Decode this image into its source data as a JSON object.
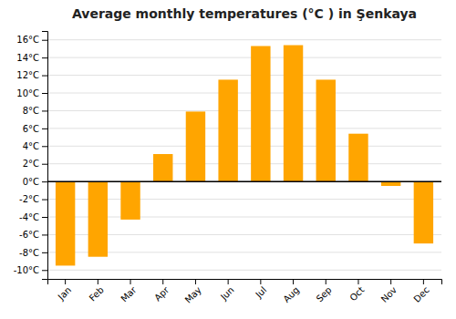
{
  "chart_data": {
    "type": "bar",
    "title": "Average monthly temperatures (°C ) in Şenkaya",
    "categories": [
      "Jan",
      "Feb",
      "Mar",
      "Apr",
      "May",
      "Jun",
      "Jul",
      "Aug",
      "Sep",
      "Oct",
      "Nov",
      "Dec"
    ],
    "values": [
      -9.5,
      -8.5,
      -4.3,
      3.1,
      7.9,
      11.5,
      15.3,
      15.4,
      11.5,
      5.4,
      -0.5,
      -7.0
    ],
    "color": "#FFA500",
    "ylim": [
      -11,
      17
    ],
    "yticks": [
      {
        "value": -10,
        "label": "-10°C"
      },
      {
        "value": -8,
        "label": "-8°C"
      },
      {
        "value": -6,
        "label": "-6°C"
      },
      {
        "value": -4,
        "label": "-4°C"
      },
      {
        "value": -2,
        "label": "-2°C"
      },
      {
        "value": 0,
        "label": "0°C"
      },
      {
        "value": 2,
        "label": "2°C"
      },
      {
        "value": 4,
        "label": "4°C"
      },
      {
        "value": 6,
        "label": "6°C"
      },
      {
        "value": 8,
        "label": "8°C"
      },
      {
        "value": 10,
        "label": "10°C"
      },
      {
        "value": 12,
        "label": "12°C"
      },
      {
        "value": 14,
        "label": "14°C"
      },
      {
        "value": 16,
        "label": "16°C"
      }
    ],
    "grid": true
  }
}
